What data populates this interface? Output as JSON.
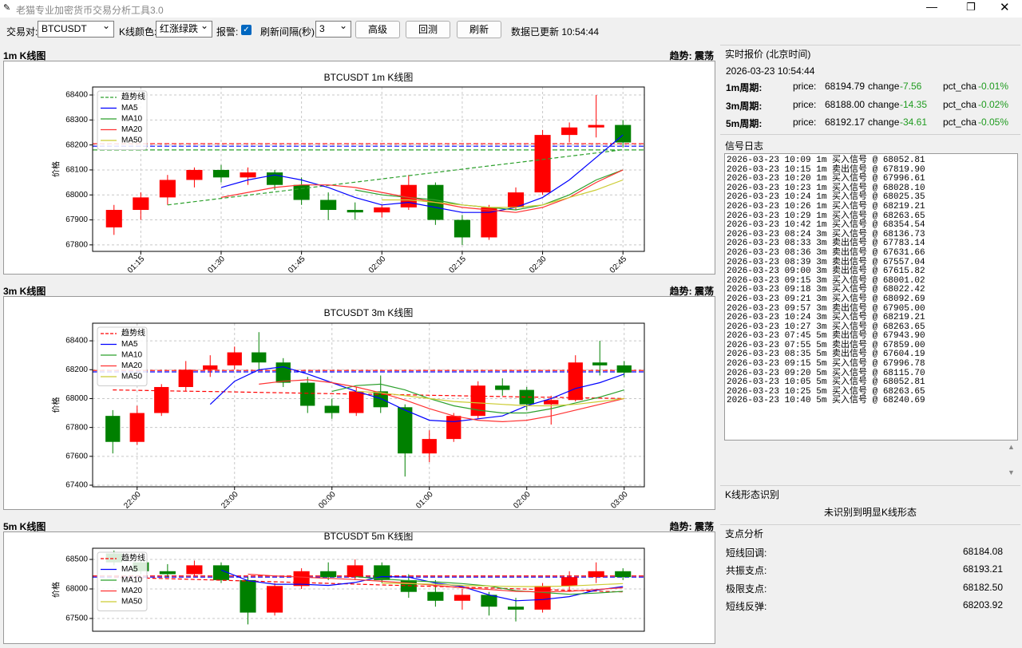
{
  "window": {
    "title": "老猫专业加密货币交易分析工具3.0"
  },
  "toolbar": {
    "pair_label": "交易对:",
    "pair": "BTCUSDT",
    "color_label": "K线颜色:",
    "color_scheme": "红涨绿跌",
    "alert_label": "报警:",
    "interval_label": "刷新间隔(秒):",
    "interval": "3",
    "buttons": [
      "高级",
      "回测",
      "刷新"
    ],
    "status": "数据已更新 10:54:44"
  },
  "panels": [
    {
      "header": "1m K线图",
      "trend": "趋势: 震荡"
    },
    {
      "header": "3m K线图",
      "trend": "趋势: 震荡"
    },
    {
      "header": "5m K线图",
      "trend": "趋势: 震荡"
    }
  ],
  "chart_data": [
    {
      "type": "candlestick",
      "title": "BTCUSDT 1m K线图",
      "ylabel": "价格",
      "up_color": "#ff0000",
      "down_color": "#008000",
      "categories": [
        null,
        "01:15",
        null,
        null,
        "01:30",
        null,
        null,
        "01:45",
        null,
        null,
        "02:00",
        null,
        null,
        "02:15",
        null,
        null,
        "02:30",
        null,
        null,
        "02:45"
      ],
      "open": [
        67870,
        67940,
        67990,
        68060,
        68100,
        68070,
        68090,
        68040,
        67980,
        67940,
        67930,
        67950,
        68040,
        67900,
        67830,
        67950,
        68010,
        68240,
        68270,
        68280
      ],
      "high": [
        67960,
        68010,
        68080,
        68110,
        68120,
        68110,
        68100,
        68070,
        68010,
        67970,
        67960,
        68080,
        68050,
        67920,
        67960,
        68030,
        68260,
        68290,
        68400,
        68300
      ],
      "low": [
        67840,
        67900,
        67960,
        68030,
        68050,
        68040,
        68020,
        67960,
        67900,
        67900,
        67910,
        67940,
        67880,
        67800,
        67820,
        67940,
        68000,
        68210,
        68230,
        68190
      ],
      "close": [
        67940,
        67990,
        68060,
        68100,
        68070,
        68090,
        68040,
        67980,
        67940,
        67930,
        67950,
        68040,
        67900,
        67830,
        67950,
        68010,
        68240,
        68270,
        68280,
        68210
      ],
      "series": [
        {
          "name": "趋势线",
          "color": "#2ca02c",
          "dashed": true,
          "values": [
            null,
            null,
            67960,
            67973,
            67986,
            67999,
            68012,
            68025,
            68038,
            68051,
            68064,
            68077,
            68090,
            68103,
            68116,
            68129,
            68142,
            68155,
            68168,
            68181
          ]
        },
        {
          "name": "MA5",
          "color": "#0000ff",
          "values": [
            null,
            null,
            null,
            null,
            68030,
            68060,
            68080,
            68060,
            68030,
            67990,
            67960,
            67970,
            67950,
            67930,
            67930,
            67950,
            67990,
            68060,
            68150,
            68240
          ]
        },
        {
          "name": "MA10",
          "color": "#2ca02c",
          "values": [
            null,
            null,
            null,
            null,
            null,
            null,
            null,
            null,
            null,
            68020,
            68000,
            67990,
            67980,
            67960,
            67950,
            67940,
            67960,
            68000,
            68060,
            68100
          ]
        },
        {
          "name": "MA20",
          "color": "#ff3333",
          "values": [
            null,
            null,
            null,
            null,
            67990,
            68010,
            68030,
            68040,
            68040,
            68030,
            68010,
            67990,
            67970,
            67950,
            67940,
            67930,
            67950,
            67990,
            68050,
            68100
          ]
        },
        {
          "name": "MA50",
          "color": "#cccc33",
          "values": [
            null,
            null,
            null,
            null,
            null,
            null,
            null,
            null,
            null,
            null,
            67980,
            67980,
            67970,
            67960,
            67950,
            67950,
            67960,
            67990,
            68020,
            68060
          ]
        }
      ],
      "hlines": [
        {
          "value": 68205,
          "color": "#ff0000"
        },
        {
          "value": 68195,
          "color": "#0000ff"
        },
        {
          "value": 68180,
          "color": "#2ca02c"
        }
      ],
      "ylim": [
        67774,
        68432
      ],
      "yticks": [
        67800,
        67900,
        68000,
        68100,
        68200,
        68300,
        68400
      ],
      "grid": true
    },
    {
      "type": "candlestick",
      "title": "BTCUSDT 3m K线图",
      "ylabel": "价格",
      "up_color": "#ff0000",
      "down_color": "#008000",
      "categories": [
        null,
        "22:00",
        null,
        null,
        null,
        "23:00",
        null,
        null,
        null,
        "00:00",
        null,
        null,
        null,
        "01:00",
        null,
        null,
        null,
        "02:00",
        null,
        null,
        null,
        "03:00"
      ],
      "open": [
        67880,
        67700,
        67900,
        68080,
        68200,
        68230,
        68320,
        68250,
        68110,
        67950,
        67900,
        68050,
        67940,
        67620,
        67720,
        67880,
        68090,
        68060,
        67960,
        67990,
        68250,
        68230
      ],
      "high": [
        67920,
        67950,
        68100,
        68260,
        68300,
        68360,
        68460,
        68280,
        68150,
        68000,
        68080,
        68160,
        67960,
        67780,
        67900,
        68120,
        68140,
        68080,
        68020,
        68300,
        68400,
        68260
      ],
      "low": [
        67620,
        67680,
        67880,
        68050,
        68150,
        68200,
        68200,
        68080,
        67900,
        67860,
        67880,
        67900,
        67460,
        67560,
        67700,
        67860,
        68020,
        67920,
        67820,
        67980,
        68160,
        68150
      ],
      "close": [
        67700,
        67900,
        68080,
        68200,
        68230,
        68320,
        68250,
        68110,
        67950,
        67900,
        68050,
        67940,
        67620,
        67720,
        67880,
        68090,
        68060,
        67960,
        67990,
        68250,
        68230,
        68180
      ],
      "series": [
        {
          "name": "趋势线",
          "color": "#ff0000",
          "dashed": true,
          "values": [
            68060,
            68057,
            68054,
            68051,
            68049,
            68046,
            68043,
            68040,
            68037,
            68034,
            68031,
            68029,
            68026,
            68023,
            68020,
            68017,
            68014,
            68011,
            68009,
            68006,
            68003,
            68000
          ]
        },
        {
          "name": "MA5",
          "color": "#0000ff",
          "values": [
            null,
            null,
            null,
            null,
            67960,
            68120,
            68200,
            68220,
            68170,
            68110,
            68050,
            68000,
            67920,
            67850,
            67840,
            67860,
            67880,
            67950,
            68000,
            68070,
            68110,
            68170
          ]
        },
        {
          "name": "MA10",
          "color": "#2ca02c",
          "values": [
            null,
            null,
            null,
            null,
            null,
            null,
            null,
            null,
            null,
            68050,
            68090,
            68100,
            68060,
            68000,
            67950,
            67920,
            67900,
            67900,
            67930,
            67970,
            68010,
            68060
          ]
        },
        {
          "name": "MA20",
          "color": "#ff3333",
          "values": [
            null,
            null,
            null,
            null,
            null,
            null,
            68100,
            68120,
            68130,
            68110,
            68080,
            68040,
            67990,
            67930,
            67880,
            67850,
            67840,
            67850,
            67880,
            67920,
            67960,
            68000
          ]
        },
        {
          "name": "MA50",
          "color": "#cccc33",
          "values": [
            null,
            null,
            null,
            null,
            null,
            null,
            null,
            null,
            null,
            null,
            68050,
            68040,
            68020,
            68000,
            67980,
            67970,
            67960,
            67950,
            67950,
            67960,
            67980,
            68000
          ]
        }
      ],
      "hlines": [
        {
          "value": 68195,
          "color": "#ff0000"
        },
        {
          "value": 68185,
          "color": "#0000ff"
        }
      ],
      "ylim": [
        67389,
        68522
      ],
      "yticks": [
        67400,
        67600,
        67800,
        68000,
        68200,
        68400
      ],
      "grid": true
    },
    {
      "type": "candlestick",
      "title": "BTCUSDT 5m K线图",
      "ylabel": "价格",
      "up_color": "#ff0000",
      "down_color": "#008000",
      "open": [
        68600,
        68450,
        68300,
        68250,
        68400,
        68150,
        67600,
        68050,
        68300,
        68200,
        68400,
        68150,
        67950,
        67800,
        67900,
        67700,
        67650,
        68050,
        68200,
        68300
      ],
      "high": [
        68650,
        68500,
        68420,
        68480,
        68450,
        68200,
        68100,
        68350,
        68450,
        68500,
        68450,
        68250,
        68150,
        68000,
        67950,
        67850,
        68100,
        68300,
        68450,
        68350
      ],
      "low": [
        68400,
        68250,
        68200,
        68220,
        68100,
        67400,
        67550,
        68000,
        68150,
        68150,
        68100,
        67850,
        67700,
        67650,
        67550,
        67450,
        67600,
        67950,
        68100,
        68150
      ],
      "close": [
        68450,
        68300,
        68250,
        68400,
        68150,
        67600,
        68050,
        68300,
        68200,
        68400,
        68150,
        67950,
        67800,
        67900,
        67700,
        67650,
        68050,
        68200,
        68300,
        68200
      ],
      "series": [
        {
          "name": "趋势线",
          "color": "#ff0000",
          "dashed": true,
          "values": [
            68200,
            68187,
            68174,
            68161,
            68147,
            68134,
            68121,
            68108,
            68095,
            68082,
            68068,
            68055,
            68042,
            68029,
            68016,
            68003,
            67989,
            67976,
            67963,
            67950
          ]
        },
        {
          "name": "MA5",
          "color": "#0000ff",
          "values": [
            null,
            null,
            null,
            null,
            68320,
            68140,
            68080,
            68080,
            68060,
            68110,
            68210,
            68200,
            68100,
            68040,
            67900,
            67800,
            67820,
            67870,
            67980,
            68040
          ]
        },
        {
          "name": "MA10",
          "color": "#2ca02c",
          "values": [
            null,
            null,
            null,
            null,
            null,
            null,
            null,
            null,
            null,
            68210,
            68170,
            68140,
            68120,
            68090,
            68050,
            67970,
            67940,
            67910,
            67930,
            67960
          ]
        },
        {
          "name": "MA20",
          "color": "#ff3333",
          "values": [
            null,
            null,
            null,
            null,
            null,
            68250,
            68220,
            68200,
            68180,
            68160,
            68130,
            68100,
            68060,
            68020,
            67990,
            67960,
            67950,
            67960,
            67990,
            68020
          ]
        },
        {
          "name": "MA50",
          "color": "#cccc33",
          "values": [
            null,
            null,
            null,
            null,
            null,
            null,
            null,
            null,
            null,
            null,
            68100,
            68090,
            68080,
            68060,
            68050,
            68040,
            68040,
            68050,
            68070,
            68090
          ]
        }
      ],
      "hlines": [
        {
          "value": 68220,
          "color": "#ff0000"
        },
        {
          "value": 68200,
          "color": "#0000ff"
        }
      ],
      "ylim": [
        67284,
        68689
      ],
      "yticks": [
        67500,
        68000,
        68500
      ],
      "grid": true
    }
  ],
  "quote": {
    "title": "实时报价 (北京时间)",
    "time": "2026-03-23 10:54:44",
    "rows": [
      {
        "period": "1m周期:",
        "price_label": "price:",
        "price": "68194.79",
        "change_label": "change",
        "change": "-7.56",
        "pct_label": "pct_cha",
        "pct": "-0.01%"
      },
      {
        "period": "3m周期:",
        "price_label": "price:",
        "price": "68188.00",
        "change_label": "change",
        "change": "-14.35",
        "pct_label": "pct_cha",
        "pct": "-0.02%"
      },
      {
        "period": "5m周期:",
        "price_label": "price:",
        "price": "68192.17",
        "change_label": "change",
        "change": "-34.61",
        "pct_label": "pct_cha",
        "pct": "-0.05%"
      }
    ]
  },
  "signal_log": {
    "title": "信号日志",
    "lines": [
      "2026-03-23 10:09 1m 买入信号 @ 68052.81",
      "2026-03-23 10:15 1m 卖出信号 @ 67819.90",
      "2026-03-23 10:20 1m 买入信号 @ 67996.61",
      "2026-03-23 10:23 1m 买入信号 @ 68028.10",
      "2026-03-23 10:24 1m 买入信号 @ 68025.35",
      "2026-03-23 10:26 1m 买入信号 @ 68219.21",
      "2026-03-23 10:29 1m 买入信号 @ 68263.65",
      "2026-03-23 10:42 1m 买入信号 @ 68354.54",
      "2026-03-23 08:24 3m 买入信号 @ 68136.73",
      "2026-03-23 08:33 3m 卖出信号 @ 67783.14",
      "2026-03-23 08:36 3m 卖出信号 @ 67631.66",
      "2026-03-23 08:39 3m 卖出信号 @ 67557.04",
      "2026-03-23 09:00 3m 卖出信号 @ 67615.82",
      "2026-03-23 09:15 3m 买入信号 @ 68001.02",
      "2026-03-23 09:18 3m 买入信号 @ 68022.42",
      "2026-03-23 09:21 3m 买入信号 @ 68092.69",
      "2026-03-23 09:57 3m 卖出信号 @ 67905.00",
      "2026-03-23 10:24 3m 买入信号 @ 68219.21",
      "2026-03-23 10:27 3m 买入信号 @ 68263.65",
      "2026-03-23 07:45 5m 卖出信号 @ 67943.90",
      "2026-03-23 07:55 5m 卖出信号 @ 67859.00",
      "2026-03-23 08:35 5m 卖出信号 @ 67604.19",
      "2026-03-23 09:15 5m 买入信号 @ 67996.78",
      "2026-03-23 09:20 5m 买入信号 @ 68115.70",
      "2026-03-23 10:05 5m 买入信号 @ 68052.81",
      "2026-03-23 10:25 5m 买入信号 @ 68263.65",
      "2026-03-23 10:40 5m 买入信号 @ 68240.69"
    ]
  },
  "pattern": {
    "title": "K线形态识别",
    "text": "未识别到明显K线形态"
  },
  "pivot": {
    "title": "支点分析",
    "rows": [
      {
        "label": "短线回调:",
        "value": "68184.08"
      },
      {
        "label": "共振支点:",
        "value": "68193.21"
      },
      {
        "label": "极限支点:",
        "value": "68182.50"
      },
      {
        "label": "短线反弹:",
        "value": "68203.92"
      }
    ]
  }
}
